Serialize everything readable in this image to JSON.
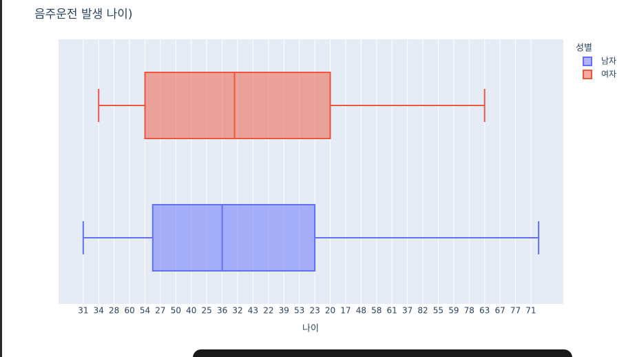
{
  "chart_data": {
    "type": "box",
    "orientation": "h",
    "title": "음주운전 발생 나이)",
    "xlabel": "나이",
    "legend_title": "성별",
    "grid": true,
    "xlim": [
      -1.6,
      31.1
    ],
    "xticks": [
      {
        "value": 0,
        "label": "31"
      },
      {
        "value": 1,
        "label": "34"
      },
      {
        "value": 2,
        "label": "28"
      },
      {
        "value": 3,
        "label": "60"
      },
      {
        "value": 4,
        "label": "54"
      },
      {
        "value": 5,
        "label": "27"
      },
      {
        "value": 6,
        "label": "50"
      },
      {
        "value": 7,
        "label": "40"
      },
      {
        "value": 8,
        "label": "25"
      },
      {
        "value": 9,
        "label": "36"
      },
      {
        "value": 10,
        "label": "32"
      },
      {
        "value": 11,
        "label": "43"
      },
      {
        "value": 12,
        "label": "22"
      },
      {
        "value": 13,
        "label": "39"
      },
      {
        "value": 14,
        "label": "53"
      },
      {
        "value": 15,
        "label": "23"
      },
      {
        "value": 16,
        "label": "20"
      },
      {
        "value": 17,
        "label": "17"
      },
      {
        "value": 18,
        "label": "48"
      },
      {
        "value": 19,
        "label": "58"
      },
      {
        "value": 20,
        "label": "61"
      },
      {
        "value": 21,
        "label": "37"
      },
      {
        "value": 22,
        "label": "82"
      },
      {
        "value": 23,
        "label": "55"
      },
      {
        "value": 24,
        "label": "59"
      },
      {
        "value": 25,
        "label": "78"
      },
      {
        "value": 26,
        "label": "63"
      },
      {
        "value": 27,
        "label": "67"
      },
      {
        "value": 28,
        "label": "77"
      },
      {
        "value": 29,
        "label": "71"
      }
    ],
    "series": [
      {
        "name": "남자",
        "color": "#636efa",
        "min": 0,
        "q1": 4.5,
        "median": 9,
        "q3": 15,
        "max": 29.5
      },
      {
        "name": "여자",
        "color": "#ef553b",
        "min": 1,
        "q1": 4,
        "median": 9.8,
        "q3": 16,
        "max": 26
      }
    ]
  }
}
